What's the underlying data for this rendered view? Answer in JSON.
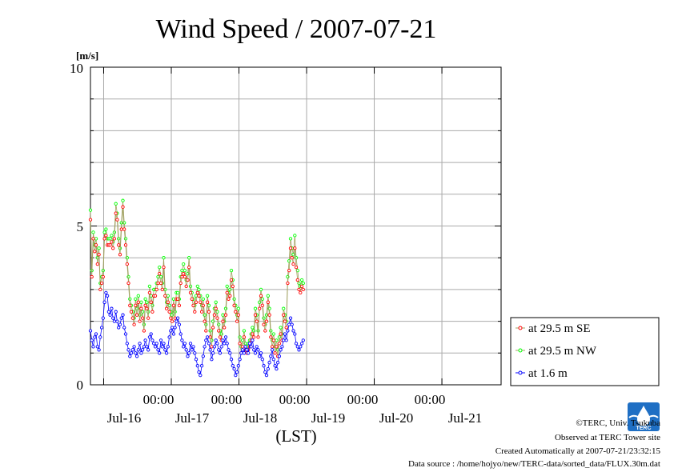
{
  "colors": {
    "se": "#ff0000",
    "nw": "#00ff00",
    "low": "#0000ff",
    "grid": "#aaaaaa",
    "se_line": "#a0a060"
  },
  "logo": {
    "text": "TERC"
  },
  "credits": {
    "line1": "©TERC, Univ. Tsukuba",
    "line2": "Observed at TERC Tower site",
    "line3": "Created Automatically at 2007-07-21/23:32:15",
    "line4": "Data source : /home/hojyo/new/TERC-data/sorted_data/FLUX.30m.dat"
  },
  "chart_data": {
    "type": "line",
    "title": "Wind Speed / 2007-07-21",
    "ylabel": "[m/s]",
    "xlabel": "(LST)",
    "ylim": [
      0,
      10
    ],
    "y_ticks": [
      "0",
      "5",
      "10"
    ],
    "x_time_labels": [
      "00:00",
      "00:00",
      "00:00",
      "00:00",
      "00:00"
    ],
    "x_day_labels": [
      "Jul-16",
      "Jul-17",
      "Jul-18",
      "Jul-19",
      "Jul-20",
      "Jul-21"
    ],
    "x_range_days": [
      15.805,
      21.875
    ],
    "legend_position": "right",
    "sample_interval_days": 0.02083,
    "series": [
      {
        "name": "at 29.5 m SE",
        "color": "#ff0000",
        "x_start": "2007-07-15 19:19",
        "values": [
          5.2,
          3.4,
          4.6,
          4.2,
          4.4,
          3.8,
          4.1,
          3.0,
          3.2,
          3.4,
          4.6,
          4.7,
          4.4,
          4.4,
          4.4,
          4.5,
          4.3,
          4.6,
          5.4,
          5.2,
          4.4,
          4.1,
          4.9,
          5.6,
          4.9,
          4.4,
          3.8,
          3.2,
          2.5,
          2.3,
          2.1,
          1.9,
          2.5,
          2.2,
          2.6,
          2.0,
          2.4,
          2.1,
          1.7,
          2.5,
          2.4,
          2.1,
          2.9,
          2.6,
          2.3,
          2.8,
          2.8,
          3.0,
          3.2,
          3.5,
          3.2,
          3.0,
          3.7,
          2.8,
          2.4,
          2.6,
          2.3,
          2.1,
          2.0,
          2.5,
          2.1,
          2.7,
          2.7,
          2.5,
          3.2,
          3.4,
          3.5,
          3.4,
          3.1,
          3.3,
          3.7,
          2.9,
          2.7,
          2.5,
          2.3,
          2.6,
          2.9,
          2.8,
          2.6,
          2.3,
          2.5,
          2.0,
          1.7,
          2.6,
          2.3,
          1.5,
          1.2,
          1.8,
          2.2,
          2.4,
          2.1,
          1.7,
          1.5,
          1.4,
          2.0,
          1.8,
          2.2,
          2.9,
          2.7,
          2.8,
          3.3,
          3.1,
          2.5,
          2.3,
          2.0,
          2.2,
          1.3,
          1.0,
          1.2,
          1.5,
          1.1,
          1.0,
          1.1,
          1.2,
          1.4,
          1.6,
          1.5,
          2.2,
          2.0,
          1.5,
          2.4,
          2.8,
          2.5,
          1.9,
          1.7,
          2.0,
          2.6,
          2.2,
          1.5,
          1.2,
          1.4,
          1.0,
          1.2,
          0.9,
          1.3,
          1.6,
          1.4,
          2.2,
          2.0,
          1.8,
          3.2,
          3.6,
          4.3,
          4.0,
          3.8,
          4.3,
          3.7,
          3.3,
          3.0,
          2.9,
          3.1,
          3.0
        ]
      },
      {
        "name": "at 29.5 m NW",
        "color": "#00ff00",
        "x_start": "2007-07-15 19:19",
        "values": [
          5.5,
          3.6,
          4.8,
          4.4,
          4.6,
          4.0,
          4.3,
          3.2,
          3.4,
          3.6,
          4.8,
          4.9,
          4.6,
          4.6,
          4.6,
          4.7,
          4.5,
          4.8,
          5.7,
          5.4,
          4.6,
          4.3,
          5.1,
          5.8,
          5.1,
          4.6,
          4.0,
          3.4,
          2.7,
          2.5,
          2.3,
          2.1,
          2.7,
          2.4,
          2.8,
          2.2,
          2.6,
          2.3,
          1.9,
          2.7,
          2.6,
          2.3,
          3.1,
          2.8,
          2.5,
          3.0,
          3.0,
          3.2,
          3.4,
          3.7,
          3.4,
          3.2,
          4.0,
          3.0,
          2.6,
          2.8,
          2.5,
          2.3,
          2.2,
          2.7,
          2.3,
          2.9,
          2.9,
          2.7,
          3.4,
          3.6,
          3.8,
          3.6,
          3.3,
          3.5,
          4.0,
          3.1,
          2.9,
          2.7,
          2.5,
          2.8,
          3.1,
          3.0,
          2.8,
          2.5,
          2.7,
          2.2,
          1.9,
          2.8,
          2.5,
          1.7,
          1.4,
          2.0,
          2.4,
          2.6,
          2.3,
          1.9,
          1.7,
          1.6,
          2.2,
          2.0,
          2.4,
          3.1,
          2.9,
          3.0,
          3.6,
          3.3,
          2.7,
          2.5,
          2.2,
          2.4,
          1.5,
          1.2,
          1.4,
          1.7,
          1.3,
          1.2,
          1.3,
          1.4,
          1.6,
          1.8,
          1.7,
          2.4,
          2.2,
          1.7,
          2.6,
          3.0,
          2.7,
          2.1,
          1.9,
          2.2,
          2.8,
          2.4,
          1.7,
          1.4,
          1.6,
          1.2,
          1.4,
          1.1,
          1.5,
          1.8,
          1.6,
          2.4,
          2.2,
          2.0,
          3.4,
          3.9,
          4.6,
          4.3,
          4.1,
          4.7,
          4.0,
          3.6,
          3.2,
          3.1,
          3.3,
          3.2
        ]
      },
      {
        "name": "at 1.6 m",
        "color": "#0000ff",
        "x_start": "2007-07-15 19:19",
        "values": [
          1.7,
          1.4,
          1.2,
          1.5,
          1.6,
          1.2,
          1.1,
          1.5,
          1.8,
          2.1,
          2.6,
          2.9,
          2.8,
          2.3,
          2.2,
          2.4,
          2.1,
          2.0,
          2.3,
          2.0,
          1.8,
          1.9,
          2.1,
          2.2,
          1.8,
          1.6,
          1.3,
          1.1,
          0.9,
          1.0,
          1.1,
          1.2,
          1.0,
          0.9,
          1.1,
          1.3,
          1.0,
          1.1,
          1.2,
          1.4,
          1.2,
          1.1,
          1.5,
          1.6,
          1.4,
          1.3,
          1.2,
          1.3,
          1.1,
          1.0,
          1.4,
          1.2,
          1.3,
          1.1,
          1.0,
          1.2,
          1.5,
          1.7,
          1.8,
          1.6,
          1.8,
          2.0,
          2.1,
          1.9,
          1.6,
          1.4,
          1.2,
          1.3,
          1.1,
          0.9,
          1.0,
          1.3,
          1.1,
          1.2,
          1.0,
          0.8,
          0.6,
          0.4,
          0.3,
          0.6,
          0.9,
          1.2,
          1.4,
          1.5,
          1.3,
          1.1,
          0.8,
          1.0,
          1.2,
          1.4,
          1.3,
          1.1,
          1.0,
          1.2,
          1.4,
          1.3,
          1.5,
          1.3,
          1.1,
          1.0,
          0.8,
          0.6,
          0.5,
          0.3,
          0.4,
          0.6,
          0.8,
          1.0,
          1.1,
          1.0,
          1.2,
          1.1,
          1.0,
          1.3,
          1.2,
          1.4,
          1.1,
          1.0,
          1.2,
          1.1,
          0.9,
          1.0,
          0.8,
          0.6,
          0.4,
          0.3,
          0.5,
          0.7,
          0.9,
          1.1,
          0.8,
          0.6,
          0.5,
          0.7,
          0.9,
          1.1,
          1.2,
          1.4,
          1.6,
          1.4,
          1.7,
          1.9,
          2.1,
          1.9,
          1.7,
          1.6,
          1.3,
          1.2,
          1.1,
          1.2,
          1.3,
          1.4
        ]
      }
    ]
  }
}
